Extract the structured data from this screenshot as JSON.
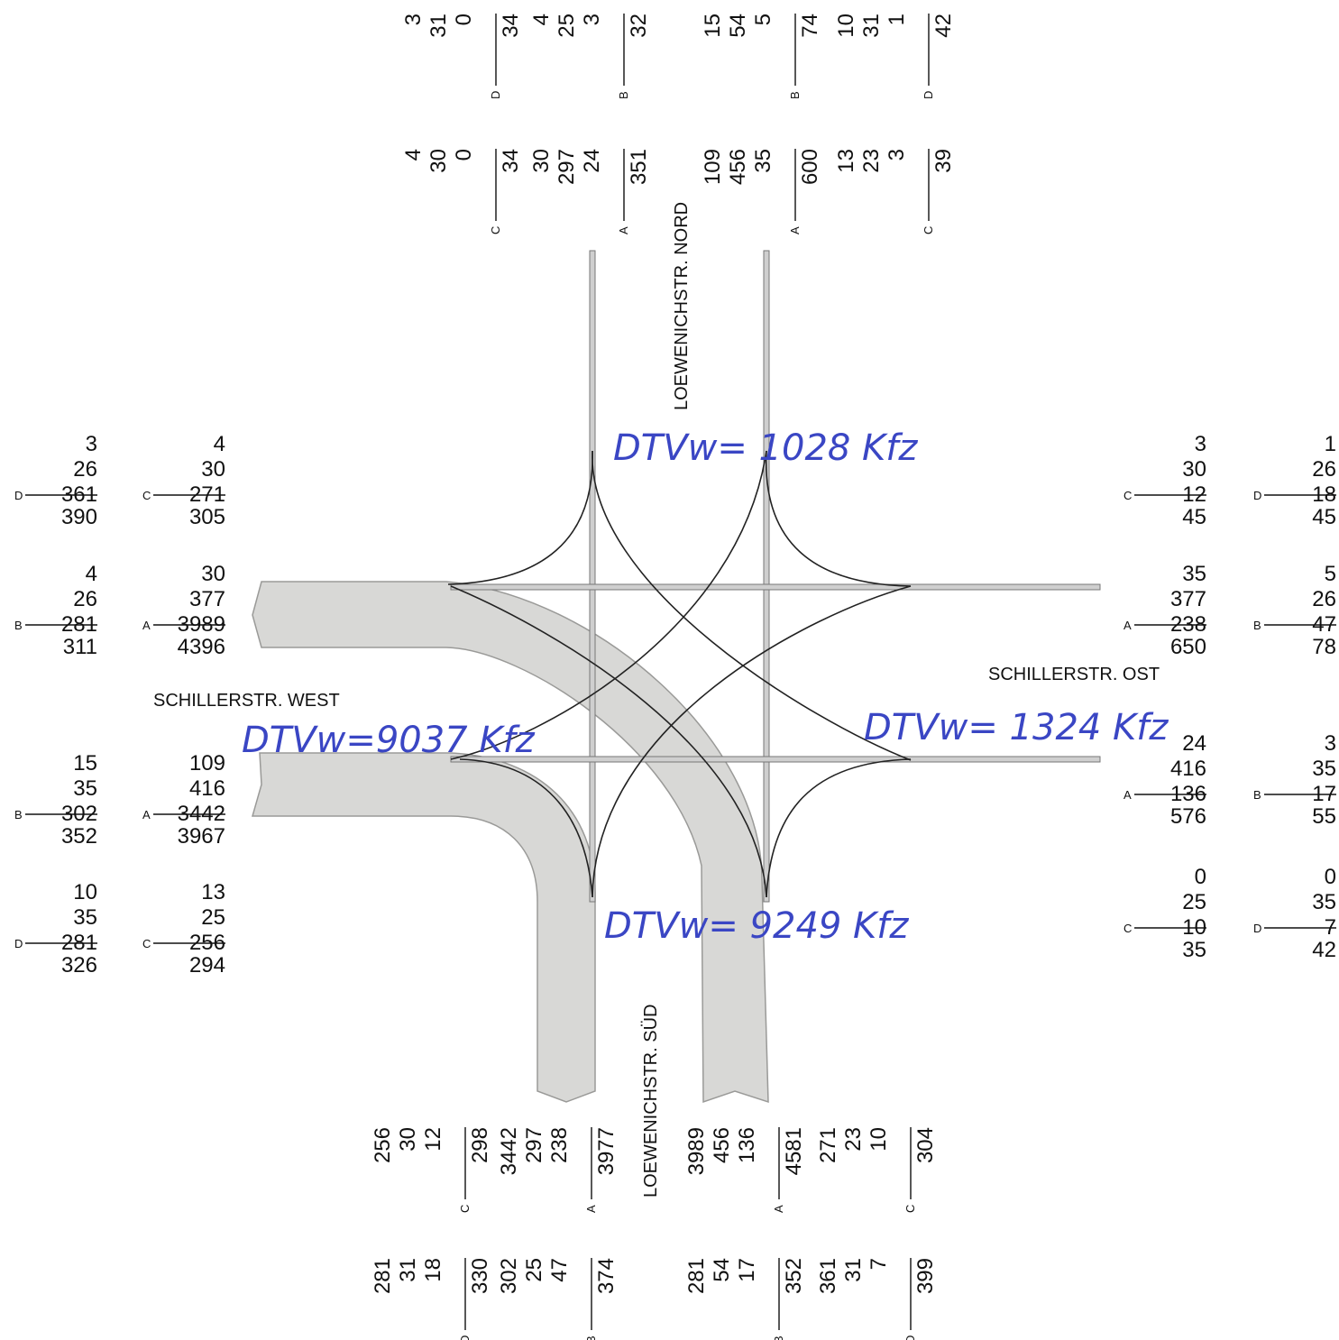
{
  "streets": {
    "north": "LOEWENICHSTR. NORD",
    "south": "LOEWENICHSTR. SÜD",
    "west": "SCHILLERSTR. WEST",
    "east": "SCHILLERSTR. OST"
  },
  "annotations": {
    "north": "DTVw= 1028 Kfz",
    "south": "DTVw= 9249 Kfz",
    "west": "DTVw=9037 Kfz",
    "east": "DTVw= 1324 Kfz"
  },
  "colors": {
    "flow_band": "#d8d8d6",
    "handwriting": "#3a46c4",
    "road": "#777777"
  },
  "count_blocks": {
    "west": [
      {
        "key": "D",
        "values": [
          "3",
          "26",
          "361"
        ],
        "total": "390"
      },
      {
        "key": "C",
        "values": [
          "4",
          "30",
          "271"
        ],
        "total": "305"
      },
      {
        "key": "B",
        "values": [
          "4",
          "26",
          "281"
        ],
        "total": "311"
      },
      {
        "key": "A",
        "values": [
          "30",
          "377",
          "3989"
        ],
        "total": "4396"
      },
      {
        "key": "B",
        "values": [
          "15",
          "35",
          "302"
        ],
        "total": "352"
      },
      {
        "key": "A",
        "values": [
          "109",
          "416",
          "3442"
        ],
        "total": "3967"
      },
      {
        "key": "D",
        "values": [
          "10",
          "35",
          "281"
        ],
        "total": "326"
      },
      {
        "key": "C",
        "values": [
          "13",
          "25",
          "256"
        ],
        "total": "294"
      }
    ],
    "east": [
      {
        "key": "C",
        "values": [
          "3",
          "30",
          "12"
        ],
        "total": "45"
      },
      {
        "key": "D",
        "values": [
          "1",
          "26",
          "18"
        ],
        "total": "45"
      },
      {
        "key": "A",
        "values": [
          "35",
          "377",
          "238"
        ],
        "total": "650"
      },
      {
        "key": "B",
        "values": [
          "5",
          "26",
          "47"
        ],
        "total": "78"
      },
      {
        "key": "A",
        "values": [
          "24",
          "416",
          "136"
        ],
        "total": "576"
      },
      {
        "key": "B",
        "values": [
          "3",
          "35",
          "17"
        ],
        "total": "55"
      },
      {
        "key": "C",
        "values": [
          "0",
          "25",
          "10"
        ],
        "total": "35"
      },
      {
        "key": "D",
        "values": [
          "0",
          "35",
          "7"
        ],
        "total": "42"
      }
    ],
    "north": [
      {
        "key": "D",
        "values": [
          "3",
          "31",
          "0"
        ],
        "total": "34"
      },
      {
        "key": "B",
        "values": [
          "4",
          "25",
          "3"
        ],
        "total": "32"
      },
      {
        "key": "B",
        "values": [
          "15",
          "54",
          "5"
        ],
        "total": "74"
      },
      {
        "key": "D",
        "values": [
          "10",
          "31",
          "1"
        ],
        "total": "42"
      },
      {
        "key": "C",
        "values": [
          "4",
          "30",
          "0"
        ],
        "total": "34"
      },
      {
        "key": "A",
        "values": [
          "30",
          "297",
          "24"
        ],
        "total": "351"
      },
      {
        "key": "A",
        "values": [
          "109",
          "456",
          "35"
        ],
        "total": "600"
      },
      {
        "key": "C",
        "values": [
          "13",
          "23",
          "3"
        ],
        "total": "39"
      }
    ],
    "south": [
      {
        "key": "C",
        "values": [
          "256",
          "30",
          "12"
        ],
        "total": "298"
      },
      {
        "key": "A",
        "values": [
          "3442",
          "297",
          "238"
        ],
        "total": "3977"
      },
      {
        "key": "A",
        "values": [
          "3989",
          "456",
          "136"
        ],
        "total": "4581"
      },
      {
        "key": "C",
        "values": [
          "271",
          "23",
          "10"
        ],
        "total": "304"
      },
      {
        "key": "D",
        "values": [
          "281",
          "31",
          "18"
        ],
        "total": "330"
      },
      {
        "key": "B",
        "values": [
          "302",
          "25",
          "47"
        ],
        "total": "374"
      },
      {
        "key": "B",
        "values": [
          "281",
          "54",
          "17"
        ],
        "total": "352"
      },
      {
        "key": "D",
        "values": [
          "361",
          "31",
          "7"
        ],
        "total": "399"
      }
    ]
  }
}
